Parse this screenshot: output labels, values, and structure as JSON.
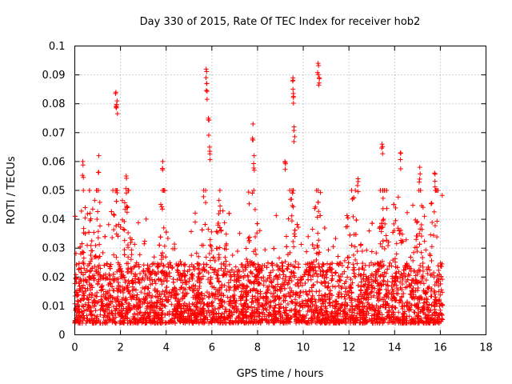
{
  "chart_data": {
    "type": "scatter",
    "title": "Day 330 of 2015, Rate Of TEC Index for receiver hob2",
    "xlabel": "GPS time / hours",
    "ylabel": "ROTI / TECUs",
    "xlim": [
      0,
      18
    ],
    "ylim": [
      0,
      0.1
    ],
    "grid": true,
    "marker": "+",
    "color": "#ff0000",
    "x_ticks": [
      "0",
      "2",
      "4",
      "6",
      "8",
      "10",
      "12",
      "14",
      "16",
      "18"
    ],
    "y_ticks": [
      "0",
      "0.01",
      "0.02",
      "0.03",
      "0.04",
      "0.05",
      "0.06",
      "0.07",
      "0.08",
      "0.09",
      "0.1"
    ],
    "series": [
      {
        "name": "ROTI",
        "approx_range_hours": [
          0,
          16.1
        ],
        "notable_points": [
          {
            "x": 0.35,
            "y": 0.06
          },
          {
            "x": 1.05,
            "y": 0.062
          },
          {
            "x": 1.8,
            "y": 0.084
          },
          {
            "x": 1.85,
            "y": 0.081
          },
          {
            "x": 2.25,
            "y": 0.055
          },
          {
            "x": 3.85,
            "y": 0.06
          },
          {
            "x": 5.75,
            "y": 0.092
          },
          {
            "x": 5.78,
            "y": 0.087
          },
          {
            "x": 5.85,
            "y": 0.075
          },
          {
            "x": 5.9,
            "y": 0.065
          },
          {
            "x": 7.8,
            "y": 0.073
          },
          {
            "x": 7.85,
            "y": 0.062
          },
          {
            "x": 9.2,
            "y": 0.06
          },
          {
            "x": 9.55,
            "y": 0.089
          },
          {
            "x": 9.55,
            "y": 0.085
          },
          {
            "x": 9.6,
            "y": 0.072
          },
          {
            "x": 10.65,
            "y": 0.094
          },
          {
            "x": 10.7,
            "y": 0.089
          },
          {
            "x": 12.4,
            "y": 0.054
          },
          {
            "x": 13.45,
            "y": 0.066
          },
          {
            "x": 14.25,
            "y": 0.063
          },
          {
            "x": 15.1,
            "y": 0.058
          },
          {
            "x": 15.75,
            "y": 0.056
          }
        ],
        "baseline_band": [
          0.004,
          0.025
        ],
        "activity_peaks_hours": [
          0.5,
          1.0,
          1.8,
          2.3,
          3.9,
          5.8,
          6.4,
          7.8,
          9.5,
          10.6,
          12.2,
          13.5,
          14.2,
          15.1,
          15.8
        ]
      }
    ]
  }
}
